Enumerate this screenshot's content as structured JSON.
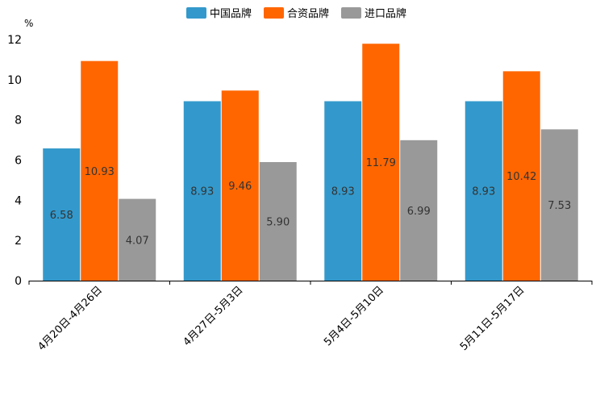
{
  "chart_data": {
    "type": "bar",
    "unit": "%",
    "categories": [
      "4月20日-4月26日",
      "4月27日-5月3日",
      "5月4日-5月10日",
      "5月11日-5月17日"
    ],
    "series": [
      {
        "name": "中国品牌",
        "color": "#3399cc",
        "values": [
          6.58,
          8.93,
          8.93,
          8.93
        ],
        "labels": [
          "6.58",
          "8.93",
          "8.93",
          "8.93"
        ]
      },
      {
        "name": "合资品牌",
        "color": "#ff6600",
        "values": [
          10.93,
          9.46,
          11.79,
          10.42
        ],
        "labels": [
          "10.93",
          "9.46",
          "11.79",
          "10.42"
        ]
      },
      {
        "name": "进口品牌",
        "color": "#999999",
        "values": [
          4.07,
          5.9,
          6.99,
          7.53
        ],
        "labels": [
          "4.07",
          "5.90",
          "6.99",
          "7.53"
        ]
      }
    ],
    "yticks": [
      "0",
      "2",
      "4",
      "6",
      "8",
      "10",
      "12"
    ],
    "ylim": [
      0,
      12
    ],
    "legend_position": "top-center",
    "grid": false
  }
}
